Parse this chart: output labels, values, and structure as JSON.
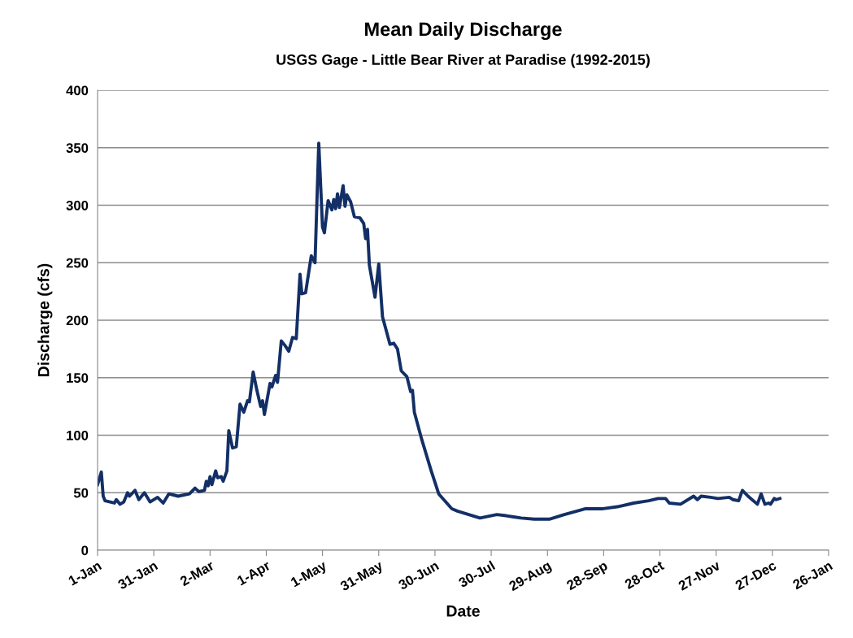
{
  "chart_data": {
    "type": "line",
    "title": "Mean Daily Discharge",
    "subtitle": "USGS Gage - Little Bear River at Paradise (1992-2015)",
    "xlabel": "Date",
    "ylabel": "Discharge (cfs)",
    "x": [
      "2015-01-01",
      "2015-01-03",
      "2015-01-04",
      "2015-01-05",
      "2015-01-10",
      "2015-01-11",
      "2015-01-13",
      "2015-01-15",
      "2015-01-17",
      "2015-01-18",
      "2015-01-21",
      "2015-01-23",
      "2015-01-26",
      "2015-01-29",
      "2015-02-02",
      "2015-02-05",
      "2015-02-08",
      "2015-02-13",
      "2015-02-19",
      "2015-02-22",
      "2015-02-24",
      "2015-02-27",
      "2015-02-28",
      "2015-03-01",
      "2015-03-02",
      "2015-03-03",
      "2015-03-05",
      "2015-03-06",
      "2015-03-08",
      "2015-03-09",
      "2015-03-11",
      "2015-03-12",
      "2015-03-14",
      "2015-03-16",
      "2015-03-18",
      "2015-03-20",
      "2015-03-22",
      "2015-03-23",
      "2015-03-25",
      "2015-03-27",
      "2015-03-29",
      "2015-03-30",
      "2015-03-31",
      "2015-04-03",
      "2015-04-04",
      "2015-04-06",
      "2015-04-07",
      "2015-04-09",
      "2015-04-11",
      "2015-04-13",
      "2015-04-15",
      "2015-04-17",
      "2015-04-19",
      "2015-04-20",
      "2015-04-22",
      "2015-04-25",
      "2015-04-27",
      "2015-04-29",
      "2015-05-01",
      "2015-05-02",
      "2015-05-04",
      "2015-05-06",
      "2015-05-07",
      "2015-05-08",
      "2015-05-09",
      "2015-05-10",
      "2015-05-12",
      "2015-05-13",
      "2015-05-14",
      "2015-05-16",
      "2015-05-18",
      "2015-05-21",
      "2015-05-23",
      "2015-05-24",
      "2015-05-25",
      "2015-05-26",
      "2015-05-29",
      "2015-05-31",
      "2015-06-02",
      "2015-06-06",
      "2015-06-08",
      "2015-06-10",
      "2015-06-12",
      "2015-06-15",
      "2015-06-17",
      "2015-06-18",
      "2015-06-19",
      "2015-06-23",
      "2015-06-28",
      "2015-07-02",
      "2015-07-09",
      "2015-07-12",
      "2015-07-18",
      "2015-07-24",
      "2015-08-02",
      "2015-08-07",
      "2015-08-11",
      "2015-08-15",
      "2015-08-22",
      "2015-08-30",
      "2015-09-07",
      "2015-09-18",
      "2015-09-27",
      "2015-10-06",
      "2015-10-14",
      "2015-10-22",
      "2015-10-27",
      "2015-10-31",
      "2015-11-02",
      "2015-11-08",
      "2015-11-15",
      "2015-11-17",
      "2015-11-19",
      "2015-11-24",
      "2015-11-28",
      "2015-12-04",
      "2015-12-06",
      "2015-12-09",
      "2015-12-11",
      "2015-12-14",
      "2015-12-19",
      "2015-12-21",
      "2015-12-23",
      "2015-12-25",
      "2015-12-26",
      "2015-12-28",
      "2015-12-29",
      "2015-12-31"
    ],
    "series": [
      {
        "color": "#132f66",
        "values": [
          57,
          68,
          47,
          43,
          41,
          44,
          40,
          42,
          50,
          47,
          52,
          44,
          50,
          42,
          46,
          41,
          49,
          47,
          49,
          54,
          51,
          52,
          60,
          56,
          64,
          57,
          69,
          63,
          64,
          60,
          69,
          104,
          89,
          90,
          127,
          120,
          130,
          129,
          155,
          139,
          125,
          130,
          118,
          145,
          142,
          152,
          146,
          182,
          178,
          173,
          185,
          184,
          240,
          223,
          224,
          256,
          250,
          354,
          281,
          276,
          304,
          296,
          305,
          297,
          310,
          298,
          317,
          299,
          309,
          303,
          290,
          289,
          284,
          271,
          279,
          248,
          220,
          249,
          203,
          179,
          180,
          175,
          156,
          151,
          138,
          139,
          120,
          96,
          69,
          49,
          36,
          34,
          31,
          28,
          31,
          30,
          29,
          28,
          27,
          27,
          31,
          36,
          36,
          38,
          41,
          43,
          45,
          45,
          41,
          40,
          47,
          44,
          47,
          46,
          45,
          46,
          44,
          43,
          52,
          47,
          40,
          49,
          40,
          41,
          40,
          45,
          44,
          45
        ]
      }
    ],
    "xlim": [
      "2015-01-01",
      "2016-01-26"
    ],
    "xticks": [
      {
        "value": "2015-01-01",
        "label": "1-Jan"
      },
      {
        "value": "2015-01-31",
        "label": "31-Jan"
      },
      {
        "value": "2015-03-02",
        "label": "2-Mar"
      },
      {
        "value": "2015-04-01",
        "label": "1-Apr"
      },
      {
        "value": "2015-05-01",
        "label": "1-May"
      },
      {
        "value": "2015-05-31",
        "label": "31-May"
      },
      {
        "value": "2015-06-30",
        "label": "30-Jun"
      },
      {
        "value": "2015-07-30",
        "label": "30-Jul"
      },
      {
        "value": "2015-08-29",
        "label": "29-Aug"
      },
      {
        "value": "2015-09-28",
        "label": "28-Sep"
      },
      {
        "value": "2015-10-28",
        "label": "28-Oct"
      },
      {
        "value": "2015-11-27",
        "label": "27-Nov"
      },
      {
        "value": "2015-12-27",
        "label": "27-Dec"
      },
      {
        "value": "2016-01-26",
        "label": "26-Jan"
      }
    ],
    "ylim": [
      0,
      400
    ],
    "yticks": [
      0,
      50,
      100,
      150,
      200,
      250,
      300,
      350,
      400
    ],
    "grid": "y",
    "marker": "none",
    "line_style": "solid"
  }
}
